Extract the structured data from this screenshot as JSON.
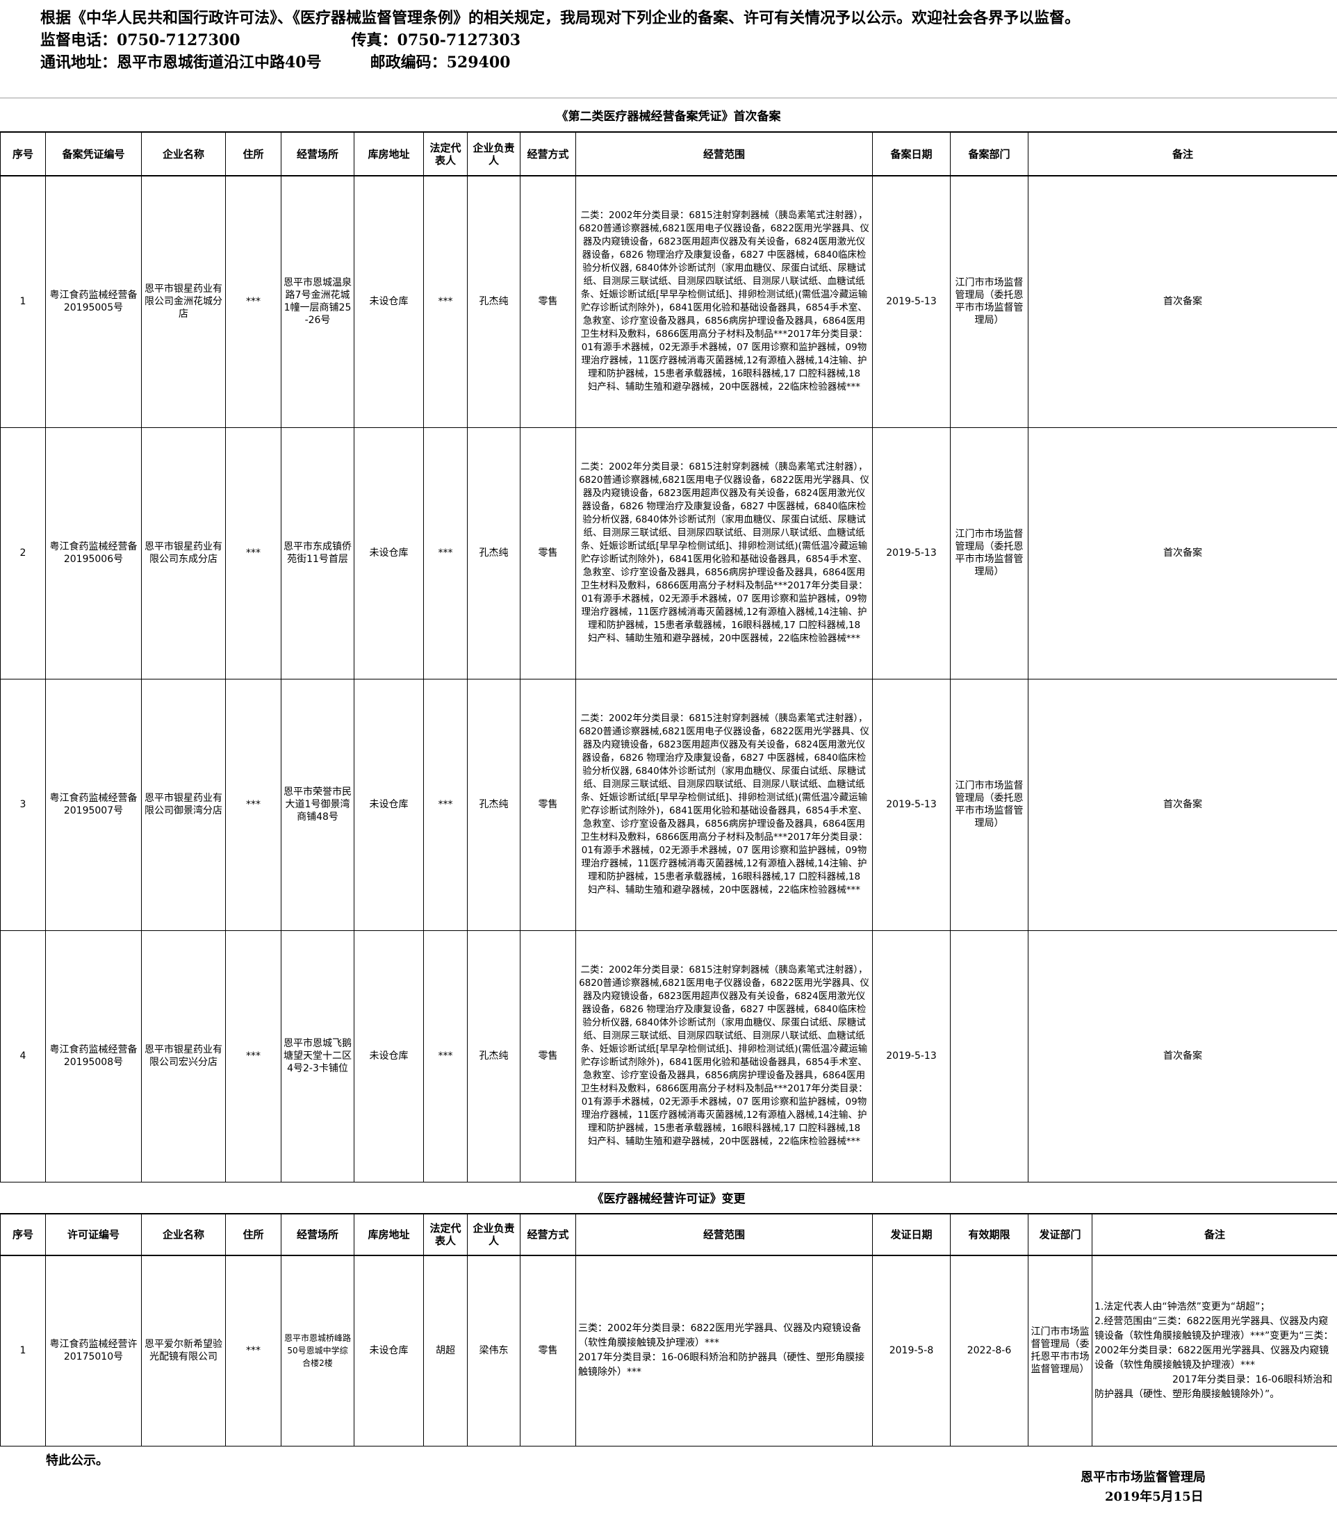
{
  "intro": {
    "line1": "根据《中华人民共和国行政许可法》、《医疗器械监督管理条例》的相关规定，我局现对下列企业的备案、许可有关情况予以公示。欢迎社会各界予以监督。",
    "phone": "监督电话：0750-7127300",
    "fax": "传真：0750-7127303",
    "address": "通讯地址：恩平市恩城街道沿江中路40号",
    "postcode": "邮政编码：529400"
  },
  "table1": {
    "title": "《第二类医疗器械经营备案凭证》首次备案",
    "headers": [
      "序号",
      "备案凭证编号",
      "企业名称",
      "住所",
      "经营场所",
      "库房地址",
      "法定代表人",
      "企业负责人",
      "经营方式",
      "经营范围",
      "备案日期",
      "备案部门",
      "备注"
    ],
    "rows": [
      {
        "no": "1",
        "cert": "粤江食药监械经营备20195005号",
        "name": "恩平市银星药业有限公司金洲花城分店",
        "residence": "***",
        "premises": "恩平市恩城温泉路7号金洲花城1幢一层商铺25-26号",
        "warehouse": "未设仓库",
        "legal": "***",
        "manager": "孔杰纯",
        "mode": "零售",
        "scope": "二类：2002年分类目录：6815注射穿刺器械（胰岛素笔式注射器），6820普通诊察器械,6821医用电子仪器设备，6822医用光学器具、仪器及内窥镜设备，6823医用超声仪器及有关设备，6824医用激光仪器设备，6826 物理治疗及康复设备，6827 中医器械，6840临床检验分析仪器, 6840体外诊断试剂（家用血糖仪、尿蛋白试纸、尿糖试纸、目测尿三联试纸、目测尿四联试纸、目测尿八联试纸、血糖试纸条、妊娠诊断试纸[早早孕检侧试纸]、排卵检测试纸)(需低温冷藏运输贮存诊断试剂除外)，6841医用化验和基础设备器具，6854手术室、急救室、诊疗室设备及器具，6856病房护理设备及器具，6864医用卫生材料及敷料，6866医用高分子材料及制品***2017年分类目录：01有源手术器械，02无源手术器械，07 医用诊察和监护器械，09物理治疗器械，11医疗器械消毒灭菌器械,12有源植入器械,14注输、护理和防护器械，15患者承载器械，16眼科器械,17 口腔科器械,18　妇产科、辅助生殖和避孕器械，20中医器械，22临床检验器械***",
        "date": "2019-5-13",
        "dept": "江门市市场监督管理局（委托恩平市市场监督管理局）",
        "remark": "首次备案"
      },
      {
        "no": "2",
        "cert": "粤江食药监械经营备20195006号",
        "name": "恩平市银星药业有限公司东成分店",
        "residence": "***",
        "premises": "恩平市东成镇侨苑街11号首层",
        "warehouse": "未设仓库",
        "legal": "***",
        "manager": "孔杰纯",
        "mode": "零售",
        "scope": "二类：2002年分类目录：6815注射穿刺器械（胰岛素笔式注射器），6820普通诊察器械,6821医用电子仪器设备，6822医用光学器具、仪器及内窥镜设备，6823医用超声仪器及有关设备，6824医用激光仪器设备，6826 物理治疗及康复设备，6827 中医器械，6840临床检验分析仪器, 6840体外诊断试剂（家用血糖仪、尿蛋白试纸、尿糖试纸、目测尿三联试纸、目测尿四联试纸、目测尿八联试纸、血糖试纸条、妊娠诊断试纸[早早孕检侧试纸]、排卵检测试纸)(需低温冷藏运输贮存诊断试剂除外)，6841医用化验和基础设备器具，6854手术室、急救室、诊疗室设备及器具，6856病房护理设备及器具，6864医用卫生材料及敷料，6866医用高分子材料及制品***2017年分类目录：01有源手术器械，02无源手术器械，07 医用诊察和监护器械，09物理治疗器械，11医疗器械消毒灭菌器械,12有源植入器械,14注输、护理和防护器械，15患者承载器械，16眼科器械,17 口腔科器械,18　妇产科、辅助生殖和避孕器械，20中医器械，22临床检验器械***",
        "date": "2019-5-13",
        "dept": "江门市市场监督管理局（委托恩平市市场监督管理局）",
        "remark": "首次备案"
      },
      {
        "no": "3",
        "cert": "粤江食药监械经营备20195007号",
        "name": "恩平市银星药业有限公司御景湾分店",
        "residence": "***",
        "premises": "恩平市荣誉市民大道1号御景湾商铺48号",
        "warehouse": "未设仓库",
        "legal": "***",
        "manager": "孔杰纯",
        "mode": "零售",
        "scope": "二类：2002年分类目录：6815注射穿刺器械（胰岛素笔式注射器），6820普通诊察器械,6821医用电子仪器设备，6822医用光学器具、仪器及内窥镜设备，6823医用超声仪器及有关设备，6824医用激光仪器设备，6826 物理治疗及康复设备，6827 中医器械，6840临床检验分析仪器, 6840体外诊断试剂（家用血糖仪、尿蛋白试纸、尿糖试纸、目测尿三联试纸、目测尿四联试纸、目测尿八联试纸、血糖试纸条、妊娠诊断试纸[早早孕检侧试纸]、排卵检测试纸)(需低温冷藏运输贮存诊断试剂除外)，6841医用化验和基础设备器具，6854手术室、急救室、诊疗室设备及器具，6856病房护理设备及器具，6864医用卫生材料及敷料，6866医用高分子材料及制品***2017年分类目录：01有源手术器械，02无源手术器械，07 医用诊察和监护器械，09物理治疗器械，11医疗器械消毒灭菌器械,12有源植入器械,14注输、护理和防护器械，15患者承载器械，16眼科器械,17 口腔科器械,18　妇产科、辅助生殖和避孕器械，20中医器械，22临床检验器械***",
        "date": "2019-5-13",
        "dept": "江门市市场监督管理局（委托恩平市市场监督管理局）",
        "remark": "首次备案"
      },
      {
        "no": "4",
        "cert": "粤江食药监械经营备20195008号",
        "name": "恩平市银星药业有限公司宏兴分店",
        "residence": "***",
        "premises": "恩平市恩城飞鹅塘望天堂十二区4号2-3卡铺位",
        "warehouse": "未设仓库",
        "legal": "***",
        "manager": "孔杰纯",
        "mode": "零售",
        "scope": "二类：2002年分类目录：6815注射穿刺器械（胰岛素笔式注射器），6820普通诊察器械,6821医用电子仪器设备，6822医用光学器具、仪器及内窥镜设备，6823医用超声仪器及有关设备，6824医用激光仪器设备，6826 物理治疗及康复设备，6827 中医器械，6840临床检验分析仪器, 6840体外诊断试剂（家用血糖仪、尿蛋白试纸、尿糖试纸、目测尿三联试纸、目测尿四联试纸、目测尿八联试纸、血糖试纸条、妊娠诊断试纸[早早孕检侧试纸]、排卵检测试纸)(需低温冷藏运输贮存诊断试剂除外)，6841医用化验和基础设备器具，6854手术室、急救室、诊疗室设备及器具，6856病房护理设备及器具，6864医用卫生材料及敷料，6866医用高分子材料及制品***2017年分类目录：01有源手术器械，02无源手术器械，07 医用诊察和监护器械，09物理治疗器械，11医疗器械消毒灭菌器械,12有源植入器械,14注输、护理和防护器械，15患者承载器械，16眼科器械,17 口腔科器械,18　妇产科、辅助生殖和避孕器械，20中医器械，22临床检验器械***",
        "date": "2019-5-13",
        "dept": "",
        "remark": "首次备案"
      }
    ]
  },
  "table2": {
    "title": "《医疗器械经营许可证》变更",
    "headers": [
      "序号",
      "许可证编号",
      "企业名称",
      "住所",
      "经营场所",
      "库房地址",
      "法定代表人",
      "企业负责人",
      "经营方式",
      "经营范围",
      "发证日期",
      "有效期限",
      "发证部门",
      "备注"
    ],
    "rows": [
      {
        "no": "1",
        "cert": "粤江食药监械经营许20175010号",
        "name": "恩平爱尔新希望验光配镜有限公司",
        "residence": "***",
        "premises": "恩平市恩城桥峰路50号恩城中学综合楼2楼",
        "warehouse": "未设仓库",
        "legal": "胡超",
        "manager": "梁伟东",
        "mode": "零售",
        "scope_line1": "三类：2002年分类目录：6822医用光学器具、仪器及内窥镜设备（软性角膜接触镜及护理液）***",
        "scope_line2": "2017年分类目录：16-06眼科矫治和防护器具（硬性、塑形角膜接触镜除外）***",
        "issue_date": "2019-5-8",
        "valid_until": "2022-8-6",
        "dept": "江门市市场监督管理局（委托恩平市市场监督管理局）",
        "remark_line1": "1.法定代表人由“钟浩然”变更为“胡超”；",
        "remark_line2": "2.经营范围由“三类：6822医用光学器具、仪器及内窥镜设备（软性角膜接触镜及护理液）***”变更为“三类：2002年分类目录：6822医用光学器具、仪器及内窥镜设备（软性角膜接触镜及护理液）*** 　　　　　　　　2017年分类目录：16-06眼科矫治和防护器具（硬性、塑形角膜接触镜除外）”。"
      }
    ]
  },
  "footer": {
    "notice": "特此公示。",
    "issuer": "恩平市市场监督管理局",
    "date": "2019年5月15日"
  }
}
